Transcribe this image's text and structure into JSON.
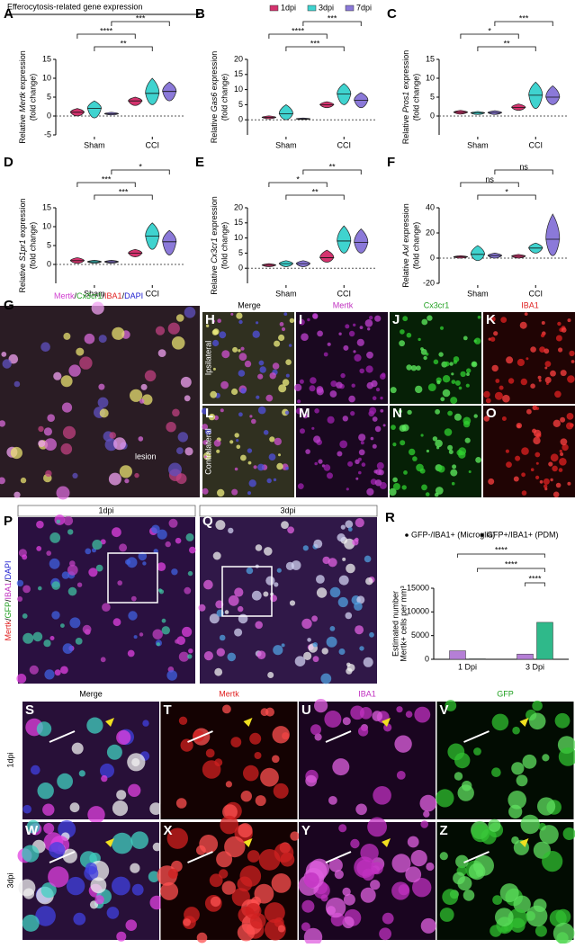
{
  "header": {
    "title": "Efferocytosis-related gene expression"
  },
  "chart_data": [
    {
      "type": "violin",
      "label": "A",
      "ylabel": [
        "Relative ",
        "Mertk",
        " expression"
      ],
      "ylabel2": "(fold change)",
      "categories": [
        "Sham",
        "CCI"
      ],
      "ylim": [
        -5,
        15
      ],
      "yticks": [
        -5,
        0,
        5,
        10,
        15
      ],
      "series": [
        {
          "name": "1dpi",
          "color": "#d4336e",
          "values": [
            1,
            4
          ],
          "low": [
            0,
            2.8
          ],
          "high": [
            2,
            5
          ]
        },
        {
          "name": "3dpi",
          "color": "#3fd3cf",
          "values": [
            2,
            6
          ],
          "low": [
            -0.5,
            3
          ],
          "high": [
            4,
            10
          ]
        },
        {
          "name": "7dpi",
          "color": "#8b79d9",
          "values": [
            0.6,
            6.5
          ],
          "low": [
            0.3,
            4
          ],
          "high": [
            1,
            9
          ]
        }
      ],
      "brackets": [
        "***",
        "****",
        "**"
      ]
    },
    {
      "type": "violin",
      "label": "B",
      "ylabel": [
        "Relative ",
        "Gas6",
        " expression"
      ],
      "ylabel2": "(fold change)",
      "categories": [
        "Sham",
        "CCI"
      ],
      "ylim": [
        -5,
        20
      ],
      "yticks": [
        0,
        5,
        10,
        15,
        20
      ],
      "series": [
        {
          "name": "1dpi",
          "color": "#d4336e",
          "values": [
            0.8,
            5
          ],
          "low": [
            0.3,
            4
          ],
          "high": [
            1.3,
            6
          ]
        },
        {
          "name": "3dpi",
          "color": "#3fd3cf",
          "values": [
            2,
            8.5
          ],
          "low": [
            0,
            5
          ],
          "high": [
            5,
            12
          ]
        },
        {
          "name": "7dpi",
          "color": "#8b79d9",
          "values": [
            0.3,
            6.5
          ],
          "low": [
            0.1,
            4
          ],
          "high": [
            0.6,
            9
          ]
        }
      ],
      "brackets": [
        "***",
        "****",
        "***"
      ]
    },
    {
      "type": "violin",
      "label": "C",
      "ylabel": [
        "Relative ",
        "Pros1",
        " expression"
      ],
      "ylabel2": "(fold change)",
      "categories": [
        "Sham",
        "CCI"
      ],
      "ylim": [
        -5,
        15
      ],
      "yticks": [
        0,
        5,
        10,
        15
      ],
      "series": [
        {
          "name": "1dpi",
          "color": "#d4336e",
          "values": [
            1,
            2.3
          ],
          "low": [
            0.5,
            1.5
          ],
          "high": [
            1.5,
            3.2
          ]
        },
        {
          "name": "3dpi",
          "color": "#3fd3cf",
          "values": [
            0.8,
            5.5
          ],
          "low": [
            0.4,
            2
          ],
          "high": [
            1.2,
            9
          ]
        },
        {
          "name": "7dpi",
          "color": "#8b79d9",
          "values": [
            0.9,
            5
          ],
          "low": [
            0.4,
            3
          ],
          "high": [
            1.4,
            8
          ]
        }
      ],
      "brackets": [
        "***",
        "*",
        "**"
      ]
    },
    {
      "type": "violin",
      "label": "D",
      "ylabel": [
        "Relative ",
        "S1pr1",
        " expression"
      ],
      "ylabel2": "(fold change)",
      "categories": [
        "Sham",
        "CCI"
      ],
      "ylim": [
        -5,
        15
      ],
      "yticks": [
        0,
        5,
        10,
        15
      ],
      "series": [
        {
          "name": "1dpi",
          "color": "#d4336e",
          "values": [
            1,
            3
          ],
          "low": [
            0.3,
            2
          ],
          "high": [
            1.8,
            4
          ]
        },
        {
          "name": "3dpi",
          "color": "#3fd3cf",
          "values": [
            0.7,
            7.5
          ],
          "low": [
            0.3,
            4
          ],
          "high": [
            1.1,
            11
          ]
        },
        {
          "name": "7dpi",
          "color": "#8b79d9",
          "values": [
            0.7,
            6
          ],
          "low": [
            0.3,
            2.5
          ],
          "high": [
            1.1,
            9
          ]
        }
      ],
      "brackets": [
        "*",
        "***",
        "***"
      ]
    },
    {
      "type": "violin",
      "label": "E",
      "ylabel": [
        "Relative ",
        "Cx3cr1",
        " expression"
      ],
      "ylabel2": "(fold change)",
      "categories": [
        "Sham",
        "CCI"
      ],
      "ylim": [
        -5,
        20
      ],
      "yticks": [
        0,
        5,
        10,
        15,
        20
      ],
      "series": [
        {
          "name": "1dpi",
          "color": "#d4336e",
          "values": [
            1,
            3.5
          ],
          "low": [
            0.5,
            2
          ],
          "high": [
            1.5,
            6
          ]
        },
        {
          "name": "3dpi",
          "color": "#3fd3cf",
          "values": [
            1.5,
            9
          ],
          "low": [
            0.5,
            5
          ],
          "high": [
            2.5,
            14
          ]
        },
        {
          "name": "7dpi",
          "color": "#8b79d9",
          "values": [
            1.5,
            8.5
          ],
          "low": [
            0.5,
            5
          ],
          "high": [
            2.5,
            13
          ]
        }
      ],
      "brackets": [
        "**",
        "*",
        "**"
      ]
    },
    {
      "type": "violin",
      "label": "F",
      "ylabel": [
        "Relative ",
        "Axl",
        " expression"
      ],
      "ylabel2": "(fold change)",
      "categories": [
        "Sham",
        "CCI"
      ],
      "ylim": [
        -20,
        40
      ],
      "yticks": [
        -20,
        0,
        20,
        40
      ],
      "series": [
        {
          "name": "1dpi",
          "color": "#d4336e",
          "values": [
            1,
            1.5
          ],
          "low": [
            0,
            0
          ],
          "high": [
            2,
            3
          ]
        },
        {
          "name": "3dpi",
          "color": "#3fd3cf",
          "values": [
            3,
            8
          ],
          "low": [
            -2,
            4
          ],
          "high": [
            10,
            12
          ]
        },
        {
          "name": "7dpi",
          "color": "#8b79d9",
          "values": [
            2,
            15
          ],
          "low": [
            0,
            2
          ],
          "high": [
            4,
            35
          ]
        }
      ],
      "brackets": [
        "ns",
        "ns",
        "*"
      ]
    },
    {
      "type": "bar",
      "label": "R",
      "ylabel": "Estimated number",
      "ylabel2": "Mertk+ cells per mm³",
      "categories": [
        "1 Dpi",
        "3 Dpi"
      ],
      "ylim": [
        0,
        15000
      ],
      "yticks": [
        0,
        5000,
        10000,
        15000
      ],
      "series": [
        {
          "name": "GFP-/IBA1+ (Microglia)",
          "color": "#b57fd6",
          "values": [
            1800,
            1100
          ]
        },
        {
          "name": "GFP+/IBA1+ (PDM)",
          "color": "#2fb98a",
          "values": [
            100,
            7800
          ]
        }
      ],
      "brackets": [
        "****",
        "****",
        "****"
      ]
    }
  ],
  "images": {
    "G": {
      "label": "G",
      "stain": [
        "Mertk",
        "/",
        "Cx3cr1",
        "/",
        "IBA1",
        "/",
        "DAPI"
      ],
      "annotation": "lesion"
    },
    "grid1": {
      "columns": [
        "Merge",
        "Mertk",
        "Cx3cr1",
        "IBA1"
      ],
      "rows": [
        "Ipsilateral",
        "Contralateral"
      ],
      "letters": [
        "H",
        "I",
        "J",
        "K",
        "L",
        "M",
        "N",
        "O"
      ]
    },
    "P": {
      "label": "P",
      "header": "1dpi",
      "stain": [
        "Mertk",
        "/",
        "GFP",
        "/",
        "IBA1",
        "/",
        "DAPI"
      ]
    },
    "Q": {
      "label": "Q",
      "header": "3dpi"
    },
    "grid2": {
      "columns": [
        "Merge",
        "Mertk",
        "IBA1",
        "GFP"
      ],
      "rows": [
        "1dpi",
        "3dpi"
      ],
      "letters": [
        "S",
        "T",
        "U",
        "V",
        "W",
        "X",
        "Y",
        "Z"
      ]
    }
  }
}
